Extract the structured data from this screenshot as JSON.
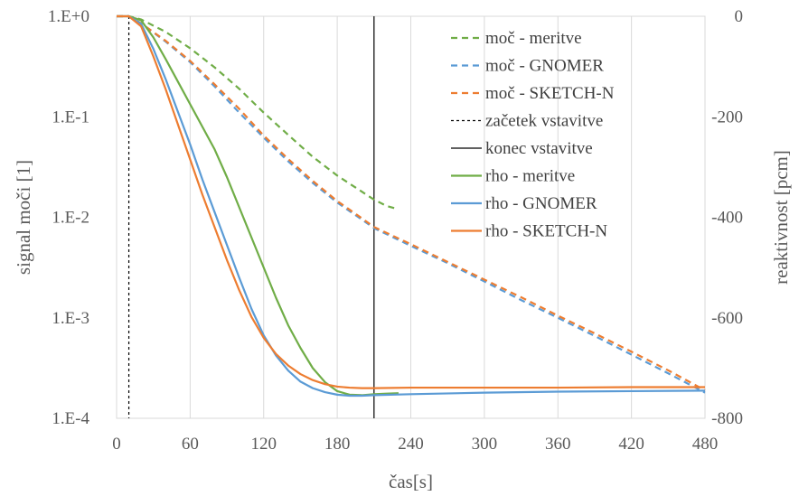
{
  "chart_data": {
    "type": "line",
    "xlabel": "čas[s]",
    "ylabel": "signal moči [1]",
    "y2label": "reaktivnost [pcm]",
    "xlim": [
      0,
      480
    ],
    "ylim": [
      0.0001,
      1
    ],
    "yscale": "log",
    "y2lim": [
      -800,
      0
    ],
    "grid": "vertical",
    "legend_position": "top-right",
    "x_ticks": [
      "0",
      "60",
      "120",
      "180",
      "240",
      "300",
      "360",
      "420",
      "480"
    ],
    "y_ticks": [
      "1.E+0",
      "1.E-1",
      "1.E-2",
      "1.E-3",
      "1.E-4"
    ],
    "y2_ticks": [
      "0",
      "-200",
      "-400",
      "-600",
      "-800"
    ],
    "vertical_markers": [
      {
        "name": "začetek vstavitve",
        "x": 10,
        "style": "dotted",
        "color": "#000000"
      },
      {
        "name": "konec vstavitve",
        "x": 210,
        "style": "solid",
        "color": "#000000"
      }
    ],
    "series": [
      {
        "name": "moč - meritve",
        "axis": "left",
        "style": "dashed",
        "color": "#70ad47",
        "x": [
          0,
          10,
          20,
          40,
          60,
          80,
          100,
          120,
          140,
          160,
          180,
          200,
          210,
          220,
          230
        ],
        "y": [
          1,
          1,
          0.93,
          0.7,
          0.48,
          0.31,
          0.19,
          0.11,
          0.066,
          0.04,
          0.026,
          0.018,
          0.015,
          0.013,
          0.012
        ]
      },
      {
        "name": "moč - GNOMER",
        "axis": "left",
        "style": "dashed",
        "color": "#5b9bd5",
        "x": [
          0,
          10,
          20,
          40,
          60,
          80,
          100,
          120,
          140,
          160,
          180,
          200,
          210,
          240,
          270,
          300,
          330,
          360,
          390,
          420,
          450,
          480
        ],
        "y": [
          1,
          1,
          0.85,
          0.56,
          0.35,
          0.2,
          0.11,
          0.062,
          0.036,
          0.022,
          0.014,
          0.0095,
          0.0078,
          0.0052,
          0.0035,
          0.0023,
          0.0015,
          0.001,
          0.00066,
          0.00043,
          0.00028,
          0.00018
        ]
      },
      {
        "name": "moč - SKETCH-N",
        "axis": "left",
        "style": "dashed",
        "color": "#ed7d31",
        "x": [
          0,
          10,
          20,
          40,
          60,
          80,
          100,
          120,
          140,
          160,
          180,
          200,
          210,
          240,
          270,
          300,
          330,
          360,
          390,
          420,
          450,
          480
        ],
        "y": [
          1,
          1,
          0.85,
          0.57,
          0.36,
          0.21,
          0.12,
          0.065,
          0.038,
          0.023,
          0.0145,
          0.0098,
          0.008,
          0.0054,
          0.0036,
          0.0024,
          0.0016,
          0.00105,
          0.0007,
          0.00046,
          0.0003,
          0.00019
        ]
      },
      {
        "name": "rho - meritve",
        "axis": "right",
        "style": "solid",
        "color": "#70ad47",
        "x": [
          0,
          10,
          20,
          30,
          40,
          50,
          60,
          70,
          80,
          90,
          100,
          110,
          120,
          130,
          140,
          150,
          160,
          170,
          180,
          190,
          200,
          210,
          220,
          230
        ],
        "y": [
          0,
          0,
          -8,
          -42,
          -85,
          -130,
          -175,
          -220,
          -265,
          -320,
          -380,
          -440,
          -500,
          -560,
          -615,
          -660,
          -700,
          -728,
          -746,
          -753,
          -754,
          -752,
          -751,
          -750
        ]
      },
      {
        "name": "rho - GNOMER",
        "axis": "right",
        "style": "solid",
        "color": "#5b9bd5",
        "x": [
          0,
          10,
          20,
          30,
          40,
          50,
          60,
          70,
          80,
          90,
          100,
          110,
          120,
          130,
          140,
          150,
          160,
          170,
          180,
          190,
          200,
          210,
          240,
          300,
          360,
          420,
          480
        ],
        "y": [
          0,
          0,
          -15,
          -65,
          -125,
          -190,
          -255,
          -325,
          -390,
          -455,
          -520,
          -582,
          -635,
          -675,
          -705,
          -727,
          -740,
          -748,
          -753,
          -755,
          -755,
          -754,
          -752,
          -749,
          -747,
          -746,
          -745
        ]
      },
      {
        "name": "rho - SKETCH-N",
        "axis": "right",
        "style": "solid",
        "color": "#ed7d31",
        "x": [
          0,
          10,
          20,
          30,
          40,
          50,
          60,
          70,
          80,
          90,
          100,
          110,
          120,
          130,
          140,
          150,
          160,
          170,
          180,
          190,
          200,
          210,
          240,
          300,
          360,
          420,
          480
        ],
        "y": [
          0,
          0,
          -20,
          -80,
          -145,
          -215,
          -285,
          -355,
          -420,
          -485,
          -545,
          -598,
          -640,
          -672,
          -695,
          -712,
          -724,
          -732,
          -737,
          -739,
          -740,
          -740,
          -739,
          -739,
          -739,
          -738,
          -738
        ]
      }
    ]
  }
}
